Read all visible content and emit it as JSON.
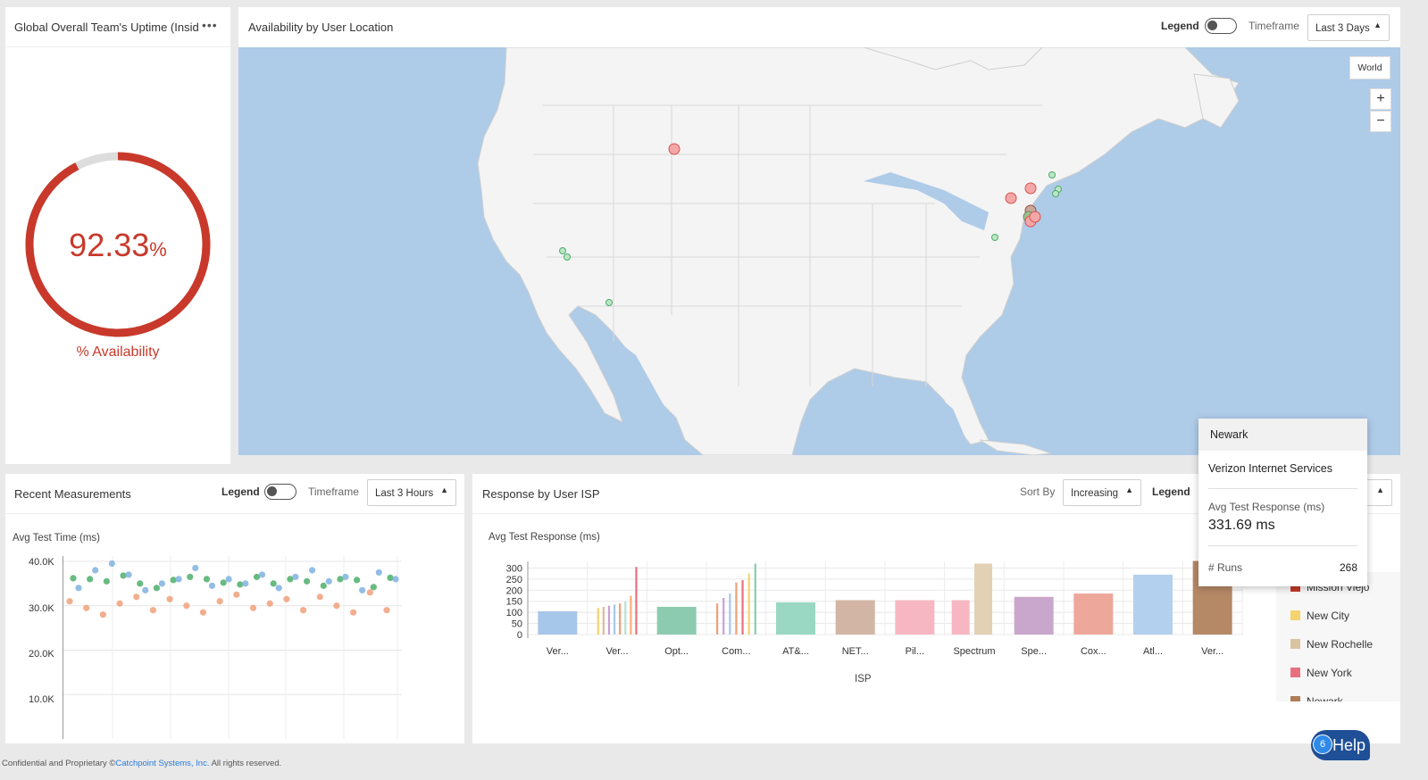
{
  "uptime_panel": {
    "title": "Global Overall Team's Uptime (Insid",
    "value": "92.33",
    "unit": "%",
    "caption": "% Availability",
    "fraction": 0.9233
  },
  "map_panel": {
    "title": "Availability by User Location",
    "legend_label": "Legend",
    "timeframe_label": "Timeframe",
    "timeframe_value": "Last 3 Days",
    "world_button": "World",
    "zoom_in": "+",
    "zoom_out": "−"
  },
  "recent_panel": {
    "title": "Recent Measurements",
    "legend_label": "Legend",
    "timeframe_label": "Timeframe",
    "timeframe_value": "Last 3 Hours",
    "y_title": "Avg Test Time (ms)",
    "y_ticks": [
      "40.0K",
      "30.0K",
      "20.0K",
      "10.0K"
    ]
  },
  "isp_panel": {
    "title": "Response by User ISP",
    "sort_label": "Sort By",
    "sort_value": "Increasing",
    "legend_label": "Legend",
    "y_title": "Avg Test Response (ms)",
    "x_title": "ISP",
    "legend_items": [
      {
        "label": "Mission Viejo",
        "color": "#c0392b"
      },
      {
        "label": "New City",
        "color": "#f5d36e"
      },
      {
        "label": "New Rochelle",
        "color": "#d9c4a0"
      },
      {
        "label": "New York",
        "color": "#e8707e"
      },
      {
        "label": "Newark",
        "color": "#b07d5a"
      }
    ]
  },
  "tooltip": {
    "location": "Newark",
    "isp": "Verizon Internet Services",
    "metric_label": "Avg Test Response (ms)",
    "metric_value": "331.69 ms",
    "runs_label": "# Runs",
    "runs_value": "268"
  },
  "help": {
    "badge": "6",
    "label": "Help"
  },
  "footer": {
    "text": "Confidential and Proprietary ©",
    "link": "Catchpoint Systems, Inc.",
    "suffix": " All rights reserved."
  },
  "colors": {
    "red": "#c8392b",
    "green": "#4caf6a",
    "blue": "#7fb1e0",
    "orange": "#f0a07a",
    "map_water": "#aecbe8"
  },
  "chart_data": [
    {
      "type": "scatter",
      "title": "Recent Measurements",
      "ylabel": "Avg Test Time (ms)",
      "ylim": [
        0,
        40000
      ],
      "y_ticks": [
        40000,
        30000,
        20000,
        10000
      ],
      "series": [
        {
          "color": "#4caf6a",
          "values": [
            36200,
            36000,
            35500,
            36800,
            35000,
            34000,
            35800,
            36500,
            36000,
            35200,
            34800,
            36500,
            35000,
            36000,
            35500,
            34500,
            36000,
            35800,
            34200,
            36300
          ]
        },
        {
          "color": "#7fb1e0",
          "values": [
            34000,
            38000,
            39500,
            37000,
            33500,
            35000,
            36000,
            38500,
            34500,
            36000,
            35000,
            37000,
            34000,
            36500,
            38000,
            35500,
            36500,
            33500,
            37500,
            36000
          ]
        },
        {
          "color": "#f0a07a",
          "values": [
            31000,
            29500,
            28000,
            30500,
            32000,
            29000,
            31500,
            30000,
            28500,
            31000,
            32500,
            29500,
            30500,
            31500,
            29000,
            32000,
            30000,
            28500,
            33000,
            29000
          ]
        }
      ]
    },
    {
      "type": "bar",
      "title": "Response by User ISP",
      "ylabel": "Avg Test Response (ms)",
      "xlabel": "ISP",
      "ylim": [
        0,
        330
      ],
      "y_ticks": [
        300,
        250,
        200,
        150,
        100,
        50,
        0
      ],
      "categories": [
        "Ver...",
        "Ver...",
        "Opt...",
        "Com...",
        "AT&...",
        "NET...",
        "Pil...",
        "Spectrum",
        "Spe...",
        "Cox...",
        "Atl...",
        "Ver..."
      ],
      "bars": [
        {
          "category": 0,
          "values": [
            105
          ],
          "colors": [
            "#a7c7ea"
          ]
        },
        {
          "category": 1,
          "values": [
            120,
            125,
            130,
            135,
            140,
            150,
            175,
            305
          ],
          "colors": [
            "#f5d36e",
            "#e0b89a",
            "#c8a0d8",
            "#a7c7ea",
            "#f0a07a",
            "#b8e0d0",
            "#ffb07a",
            "#e8707e"
          ]
        },
        {
          "category": 2,
          "values": [
            125
          ],
          "colors": [
            "#8ccbb0"
          ]
        },
        {
          "category": 3,
          "values": [
            140,
            165,
            185,
            235,
            245,
            275,
            320
          ],
          "colors": [
            "#f0a07a",
            "#c8a0d8",
            "#a7c7ea",
            "#f0a07a",
            "#e8707e",
            "#f5d36e",
            "#8ccbb0"
          ]
        },
        {
          "category": 4,
          "values": [
            145
          ],
          "colors": [
            "#9ad8c4"
          ]
        },
        {
          "category": 5,
          "values": [
            155
          ],
          "colors": [
            "#d2b5a4"
          ]
        },
        {
          "category": 6,
          "values": [
            155
          ],
          "colors": [
            "#f7b7c2"
          ]
        },
        {
          "category": 7,
          "values": [
            155,
            320
          ],
          "colors": [
            "#f7b7c2",
            "#e2d1b4"
          ]
        },
        {
          "category": 8,
          "values": [
            170
          ],
          "colors": [
            "#c9a6cc"
          ]
        },
        {
          "category": 9,
          "values": [
            185
          ],
          "colors": [
            "#eea79b"
          ]
        },
        {
          "category": 10,
          "values": [
            270
          ],
          "colors": [
            "#b3d0ee"
          ]
        },
        {
          "category": 11,
          "values": [
            331.69
          ],
          "colors": [
            "#b58866"
          ]
        }
      ]
    }
  ]
}
